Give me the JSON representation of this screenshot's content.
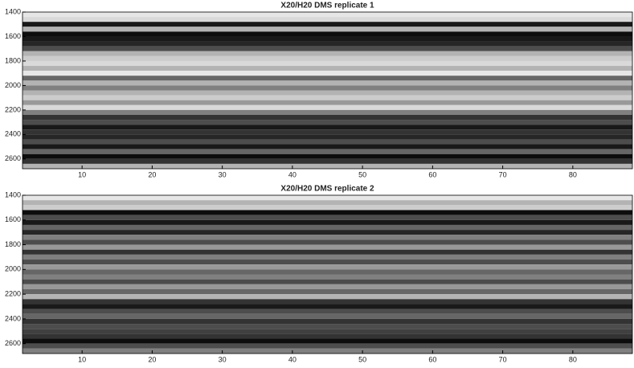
{
  "chart_data": [
    {
      "type": "heatmap",
      "title": "X20/H20 DMS replicate 1",
      "colormap": "gray_r",
      "xlim": [
        1.5,
        88.5
      ],
      "xticks": [
        10,
        20,
        30,
        40,
        50,
        60,
        70,
        80
      ],
      "ylim": [
        1400,
        2680
      ],
      "yticks": [
        1400,
        1600,
        1800,
        2000,
        2200,
        2400,
        2600
      ],
      "bands": [
        1400,
        1440,
        1480,
        1520,
        1560,
        1600,
        1640,
        1680,
        1720,
        1760,
        1800,
        1840,
        1880,
        1920,
        1960,
        2000,
        2040,
        2080,
        2120,
        2160,
        2200,
        2240,
        2280,
        2320,
        2360,
        2400,
        2440,
        2480,
        2520,
        2560,
        2600,
        2640,
        2680
      ],
      "values": [
        0.1,
        0.15,
        0.9,
        0.3,
        0.95,
        0.9,
        0.85,
        0.7,
        0.3,
        0.2,
        0.15,
        0.3,
        0.1,
        0.6,
        0.3,
        0.5,
        0.3,
        0.2,
        0.4,
        0.15,
        0.5,
        0.8,
        0.7,
        0.9,
        0.8,
        0.85,
        0.7,
        0.9,
        0.6,
        0.95,
        0.8,
        0.3
      ]
    },
    {
      "type": "heatmap",
      "title": "X20/H20 DMS replicate 2",
      "colormap": "gray_r",
      "xlim": [
        1.5,
        88.5
      ],
      "xticks": [
        10,
        20,
        30,
        40,
        50,
        60,
        70,
        80
      ],
      "ylim": [
        1400,
        2680
      ],
      "yticks": [
        1400,
        1600,
        1800,
        2000,
        2200,
        2400,
        2600
      ],
      "bands": [
        1400,
        1440,
        1480,
        1520,
        1560,
        1600,
        1640,
        1680,
        1720,
        1760,
        1800,
        1840,
        1880,
        1920,
        1960,
        2000,
        2040,
        2080,
        2120,
        2160,
        2200,
        2240,
        2280,
        2320,
        2360,
        2400,
        2440,
        2480,
        2520,
        2560,
        2600,
        2640,
        2680
      ],
      "values": [
        0.1,
        0.3,
        0.2,
        0.95,
        0.7,
        0.9,
        0.6,
        0.85,
        0.5,
        0.7,
        0.4,
        0.8,
        0.5,
        0.7,
        0.4,
        0.6,
        0.5,
        0.7,
        0.4,
        0.6,
        0.3,
        0.8,
        0.9,
        0.7,
        0.6,
        0.8,
        0.7,
        0.75,
        0.8,
        0.95,
        0.7,
        0.5
      ]
    }
  ]
}
